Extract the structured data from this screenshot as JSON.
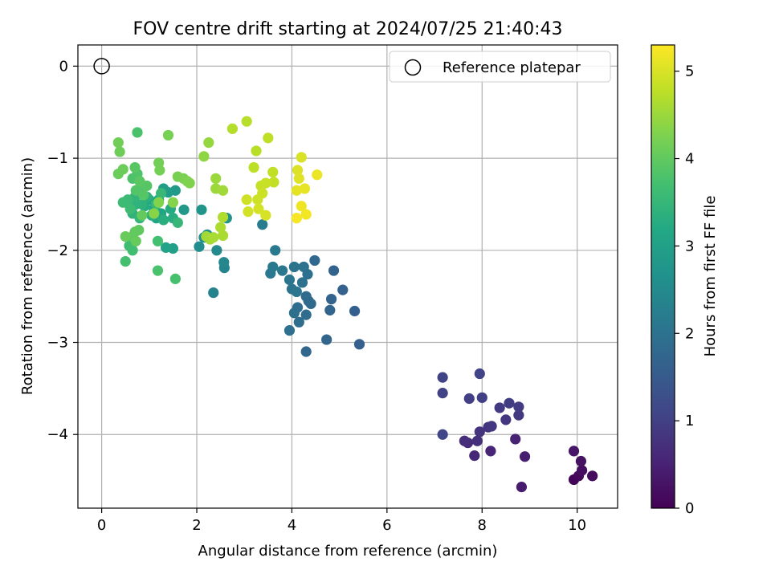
{
  "chart_data": {
    "type": "scatter",
    "title": "FOV centre drift starting at 2024/07/25 21:40:43",
    "xlabel": "Angular distance from reference (arcmin)",
    "ylabel": "Rotation from reference (arcmin)",
    "xlim": [
      -0.5,
      10.85
    ],
    "ylim": [
      -4.8,
      0.23
    ],
    "xticks": [
      0,
      2,
      4,
      6,
      8,
      10
    ],
    "yticks": [
      0,
      -1,
      -2,
      -3,
      -4
    ],
    "grid": true,
    "legend": {
      "placement": "top-right",
      "entries": [
        "Reference platepar"
      ]
    },
    "reference_point": {
      "x": 0.0,
      "y": 0.0
    },
    "colorbar": {
      "label": "Hours from first FF file",
      "colormap": "viridis",
      "range": [
        0,
        5.3
      ],
      "ticks": [
        0,
        1,
        2,
        3,
        4,
        5
      ]
    },
    "points": [
      {
        "x": 9.93,
        "y": -4.49,
        "c": 0.05
      },
      {
        "x": 10.03,
        "y": -4.45,
        "c": 0.1
      },
      {
        "x": 10.32,
        "y": -4.45,
        "c": 0.15
      },
      {
        "x": 10.1,
        "y": -4.39,
        "c": 0.2
      },
      {
        "x": 10.08,
        "y": -4.29,
        "c": 0.25
      },
      {
        "x": 9.93,
        "y": -4.18,
        "c": 0.3
      },
      {
        "x": 8.83,
        "y": -4.57,
        "c": 0.4
      },
      {
        "x": 8.9,
        "y": -4.24,
        "c": 0.45
      },
      {
        "x": 8.7,
        "y": -4.05,
        "c": 0.5
      },
      {
        "x": 8.18,
        "y": -4.18,
        "c": 0.55
      },
      {
        "x": 7.84,
        "y": -4.23,
        "c": 0.6
      },
      {
        "x": 7.7,
        "y": -4.09,
        "c": 0.65
      },
      {
        "x": 7.63,
        "y": -4.07,
        "c": 0.7
      },
      {
        "x": 7.9,
        "y": -4.07,
        "c": 0.72
      },
      {
        "x": 7.95,
        "y": -3.97,
        "c": 0.78
      },
      {
        "x": 8.13,
        "y": -3.92,
        "c": 0.8
      },
      {
        "x": 8.2,
        "y": -3.91,
        "c": 0.82
      },
      {
        "x": 8.5,
        "y": -3.84,
        "c": 0.85
      },
      {
        "x": 8.77,
        "y": -3.79,
        "c": 0.88
      },
      {
        "x": 8.37,
        "y": -3.71,
        "c": 0.9
      },
      {
        "x": 8.77,
        "y": -3.7,
        "c": 0.93
      },
      {
        "x": 8.57,
        "y": -3.66,
        "c": 0.95
      },
      {
        "x": 7.73,
        "y": -3.61,
        "c": 0.98
      },
      {
        "x": 8.0,
        "y": -3.6,
        "c": 1.0
      },
      {
        "x": 7.17,
        "y": -3.55,
        "c": 1.02
      },
      {
        "x": 7.17,
        "y": -3.38,
        "c": 1.05
      },
      {
        "x": 7.95,
        "y": -3.34,
        "c": 1.08
      },
      {
        "x": 7.17,
        "y": -4.0,
        "c": 1.1
      },
      {
        "x": 5.42,
        "y": -3.02,
        "c": 1.6
      },
      {
        "x": 5.32,
        "y": -2.66,
        "c": 1.62
      },
      {
        "x": 5.07,
        "y": -2.43,
        "c": 1.65
      },
      {
        "x": 4.88,
        "y": -2.22,
        "c": 1.68
      },
      {
        "x": 4.83,
        "y": -2.53,
        "c": 1.7
      },
      {
        "x": 4.8,
        "y": -2.65,
        "c": 1.72
      },
      {
        "x": 4.73,
        "y": -2.97,
        "c": 1.74
      },
      {
        "x": 4.3,
        "y": -3.1,
        "c": 1.76
      },
      {
        "x": 4.48,
        "y": -2.11,
        "c": 1.78
      },
      {
        "x": 4.4,
        "y": -2.58,
        "c": 1.8
      },
      {
        "x": 4.35,
        "y": -2.55,
        "c": 1.82
      },
      {
        "x": 4.3,
        "y": -2.5,
        "c": 1.84
      },
      {
        "x": 4.3,
        "y": -2.7,
        "c": 1.86
      },
      {
        "x": 4.15,
        "y": -2.78,
        "c": 1.88
      },
      {
        "x": 4.12,
        "y": -2.62,
        "c": 1.9
      },
      {
        "x": 4.05,
        "y": -2.68,
        "c": 1.92
      },
      {
        "x": 3.95,
        "y": -2.87,
        "c": 1.94
      },
      {
        "x": 4.33,
        "y": -2.26,
        "c": 1.96
      },
      {
        "x": 4.22,
        "y": -2.35,
        "c": 1.98
      },
      {
        "x": 4.25,
        "y": -2.18,
        "c": 2.0
      },
      {
        "x": 4.05,
        "y": -2.18,
        "c": 2.02
      },
      {
        "x": 4.0,
        "y": -2.42,
        "c": 2.04
      },
      {
        "x": 3.95,
        "y": -2.32,
        "c": 2.06
      },
      {
        "x": 4.1,
        "y": -2.45,
        "c": 2.08
      },
      {
        "x": 3.8,
        "y": -2.22,
        "c": 2.1
      },
      {
        "x": 3.6,
        "y": -2.18,
        "c": 2.12
      },
      {
        "x": 3.55,
        "y": -2.25,
        "c": 2.14
      },
      {
        "x": 3.65,
        "y": -2.0,
        "c": 2.16
      },
      {
        "x": 3.38,
        "y": -1.72,
        "c": 2.2
      },
      {
        "x": 2.35,
        "y": -2.46,
        "c": 2.35
      },
      {
        "x": 2.58,
        "y": -2.19,
        "c": 2.4
      },
      {
        "x": 2.57,
        "y": -2.13,
        "c": 2.45
      },
      {
        "x": 2.42,
        "y": -2.0,
        "c": 2.5
      },
      {
        "x": 2.05,
        "y": -1.96,
        "c": 2.55
      },
      {
        "x": 2.15,
        "y": -1.86,
        "c": 2.6
      },
      {
        "x": 2.22,
        "y": -1.83,
        "c": 2.65
      },
      {
        "x": 2.63,
        "y": -1.65,
        "c": 2.7
      },
      {
        "x": 2.1,
        "y": -1.56,
        "c": 2.75
      },
      {
        "x": 1.73,
        "y": -1.56,
        "c": 2.8
      },
      {
        "x": 1.55,
        "y": -1.35,
        "c": 2.85
      },
      {
        "x": 1.4,
        "y": -1.37,
        "c": 2.9
      },
      {
        "x": 1.3,
        "y": -1.33,
        "c": 2.95
      },
      {
        "x": 1.5,
        "y": -1.98,
        "c": 3.0
      },
      {
        "x": 1.35,
        "y": -1.97,
        "c": 3.05
      },
      {
        "x": 1.25,
        "y": -1.6,
        "c": 3.1
      },
      {
        "x": 1.15,
        "y": -1.65,
        "c": 3.12
      },
      {
        "x": 1.1,
        "y": -1.55,
        "c": 3.15
      },
      {
        "x": 1.2,
        "y": -1.45,
        "c": 3.18
      },
      {
        "x": 1.0,
        "y": -1.45,
        "c": 3.2
      },
      {
        "x": 0.9,
        "y": -1.52,
        "c": 3.22
      },
      {
        "x": 1.45,
        "y": -1.55,
        "c": 3.25
      },
      {
        "x": 1.5,
        "y": -1.65,
        "c": 3.28
      },
      {
        "x": 1.3,
        "y": -1.67,
        "c": 3.3
      },
      {
        "x": 1.05,
        "y": -1.62,
        "c": 3.32
      },
      {
        "x": 0.95,
        "y": -1.42,
        "c": 3.35
      },
      {
        "x": 0.85,
        "y": -1.5,
        "c": 3.38
      },
      {
        "x": 0.72,
        "y": -1.5,
        "c": 3.4
      },
      {
        "x": 0.65,
        "y": -1.6,
        "c": 3.42
      },
      {
        "x": 0.7,
        "y": -1.42,
        "c": 3.45
      },
      {
        "x": 0.8,
        "y": -1.65,
        "c": 3.48
      },
      {
        "x": 1.6,
        "y": -1.7,
        "c": 3.5
      },
      {
        "x": 1.25,
        "y": -1.38,
        "c": 3.52
      },
      {
        "x": 1.15,
        "y": -1.5,
        "c": 3.55
      },
      {
        "x": 0.55,
        "y": -1.45,
        "c": 3.58
      },
      {
        "x": 0.45,
        "y": -1.48,
        "c": 3.6
      },
      {
        "x": 0.6,
        "y": -1.55,
        "c": 3.62
      },
      {
        "x": 0.58,
        "y": -1.95,
        "c": 3.65
      },
      {
        "x": 0.65,
        "y": -2.0,
        "c": 3.67
      },
      {
        "x": 1.18,
        "y": -1.9,
        "c": 3.7
      },
      {
        "x": 0.5,
        "y": -2.12,
        "c": 3.72
      },
      {
        "x": 1.55,
        "y": -2.31,
        "c": 3.74
      },
      {
        "x": 1.18,
        "y": -2.22,
        "c": 3.76
      },
      {
        "x": 0.75,
        "y": -0.72,
        "c": 3.78
      },
      {
        "x": 0.65,
        "y": -1.22,
        "c": 3.8
      },
      {
        "x": 0.75,
        "y": -1.17,
        "c": 3.82
      },
      {
        "x": 0.82,
        "y": -1.3,
        "c": 3.84
      },
      {
        "x": 0.72,
        "y": -1.35,
        "c": 3.86
      },
      {
        "x": 0.88,
        "y": -1.4,
        "c": 3.88
      },
      {
        "x": 0.95,
        "y": -1.3,
        "c": 3.9
      },
      {
        "x": 0.7,
        "y": -1.1,
        "c": 3.92
      },
      {
        "x": 0.8,
        "y": -1.25,
        "c": 3.94
      },
      {
        "x": 0.65,
        "y": -1.85,
        "c": 3.96
      },
      {
        "x": 0.78,
        "y": -1.78,
        "c": 3.98
      },
      {
        "x": 0.7,
        "y": -1.8,
        "c": 4.0
      },
      {
        "x": 0.85,
        "y": -1.62,
        "c": 4.02
      },
      {
        "x": 0.72,
        "y": -1.9,
        "c": 4.04
      },
      {
        "x": 0.5,
        "y": -1.85,
        "c": 4.06
      },
      {
        "x": 0.35,
        "y": -1.17,
        "c": 4.08
      },
      {
        "x": 0.45,
        "y": -1.12,
        "c": 4.1
      },
      {
        "x": 0.38,
        "y": -0.93,
        "c": 4.12
      },
      {
        "x": 0.35,
        "y": -0.83,
        "c": 4.14
      },
      {
        "x": 1.2,
        "y": -1.05,
        "c": 4.16
      },
      {
        "x": 1.22,
        "y": -1.13,
        "c": 4.18
      },
      {
        "x": 1.4,
        "y": -0.75,
        "c": 4.2
      },
      {
        "x": 1.6,
        "y": -1.2,
        "c": 4.22
      },
      {
        "x": 1.72,
        "y": -1.22,
        "c": 4.24
      },
      {
        "x": 1.8,
        "y": -1.25,
        "c": 4.26
      },
      {
        "x": 1.85,
        "y": -1.27,
        "c": 4.28
      },
      {
        "x": 1.2,
        "y": -1.48,
        "c": 4.3
      },
      {
        "x": 1.5,
        "y": -1.48,
        "c": 4.32
      },
      {
        "x": 1.1,
        "y": -1.6,
        "c": 4.34
      },
      {
        "x": 2.15,
        "y": -0.98,
        "c": 4.4
      },
      {
        "x": 2.25,
        "y": -0.83,
        "c": 4.45
      },
      {
        "x": 2.4,
        "y": -1.22,
        "c": 4.5
      },
      {
        "x": 2.4,
        "y": -1.33,
        "c": 4.52
      },
      {
        "x": 2.55,
        "y": -1.35,
        "c": 4.54
      },
      {
        "x": 2.2,
        "y": -1.85,
        "c": 4.56
      },
      {
        "x": 2.28,
        "y": -1.88,
        "c": 4.58
      },
      {
        "x": 2.35,
        "y": -1.86,
        "c": 4.6
      },
      {
        "x": 2.55,
        "y": -1.84,
        "c": 4.62
      },
      {
        "x": 2.5,
        "y": -1.75,
        "c": 4.64
      },
      {
        "x": 2.55,
        "y": -1.64,
        "c": 4.66
      },
      {
        "x": 2.75,
        "y": -0.68,
        "c": 4.7
      },
      {
        "x": 3.05,
        "y": -0.6,
        "c": 4.72
      },
      {
        "x": 3.25,
        "y": -0.92,
        "c": 4.74
      },
      {
        "x": 3.2,
        "y": -1.1,
        "c": 4.76
      },
      {
        "x": 3.5,
        "y": -0.78,
        "c": 4.78
      },
      {
        "x": 3.6,
        "y": -1.15,
        "c": 4.8
      },
      {
        "x": 3.62,
        "y": -1.26,
        "c": 4.82
      },
      {
        "x": 3.35,
        "y": -1.3,
        "c": 4.84
      },
      {
        "x": 3.45,
        "y": -1.27,
        "c": 4.86
      },
      {
        "x": 3.38,
        "y": -1.38,
        "c": 4.88
      },
      {
        "x": 3.28,
        "y": -1.45,
        "c": 4.9
      },
      {
        "x": 3.05,
        "y": -1.45,
        "c": 4.92
      },
      {
        "x": 3.08,
        "y": -1.58,
        "c": 4.94
      },
      {
        "x": 3.3,
        "y": -1.55,
        "c": 4.96
      },
      {
        "x": 3.45,
        "y": -1.62,
        "c": 4.98
      },
      {
        "x": 4.2,
        "y": -0.99,
        "c": 5.0
      },
      {
        "x": 4.12,
        "y": -1.13,
        "c": 5.03
      },
      {
        "x": 4.15,
        "y": -1.22,
        "c": 5.06
      },
      {
        "x": 4.1,
        "y": -1.35,
        "c": 5.09
      },
      {
        "x": 4.27,
        "y": -1.33,
        "c": 5.12
      },
      {
        "x": 4.53,
        "y": -1.18,
        "c": 5.15
      },
      {
        "x": 4.2,
        "y": -1.52,
        "c": 5.18
      },
      {
        "x": 4.3,
        "y": -1.61,
        "c": 5.21
      },
      {
        "x": 4.1,
        "y": -1.65,
        "c": 5.24
      }
    ]
  }
}
